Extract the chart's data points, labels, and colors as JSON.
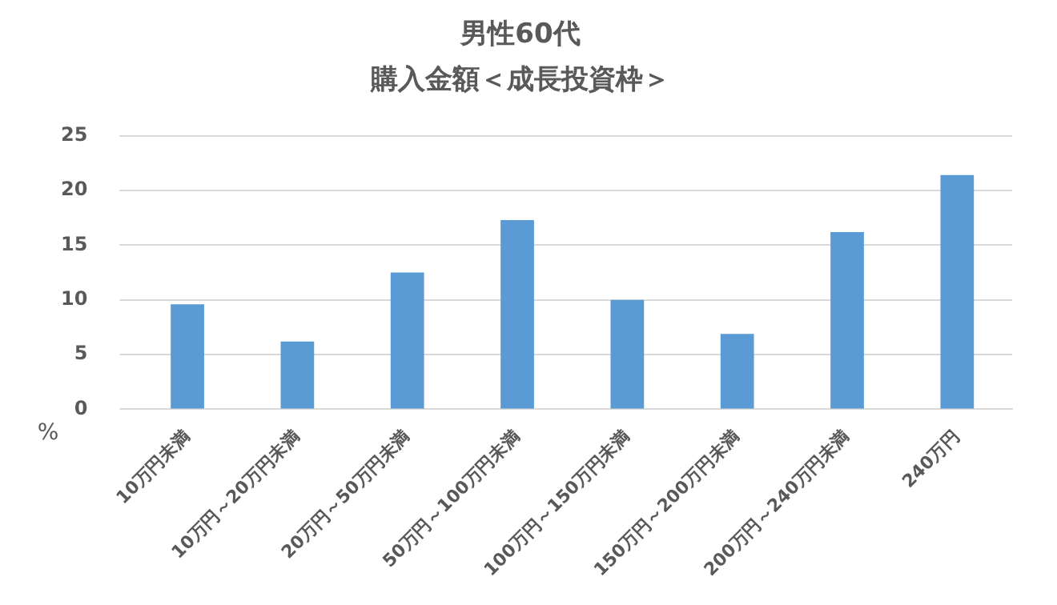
{
  "chart_data": {
    "type": "bar",
    "title": "男性60代",
    "subtitle": "購入金額＜成長投資枠＞",
    "ylabel": "%",
    "categories": [
      "10万円未満",
      "10万円～20万円未満",
      "20万円～50万円未満",
      "50万円～100万円未満",
      "100万円～150万円未満",
      "150万円～200万円未満",
      "200万円～240万円未満",
      "240万円"
    ],
    "values": [
      9.6,
      6.2,
      12.5,
      17.3,
      10.0,
      6.9,
      16.2,
      21.4
    ],
    "color": "#5b9bd5",
    "ylim": [
      0,
      25
    ],
    "yticks": [
      0,
      5,
      10,
      15,
      20,
      25
    ],
    "grid": "y",
    "legend": false
  }
}
